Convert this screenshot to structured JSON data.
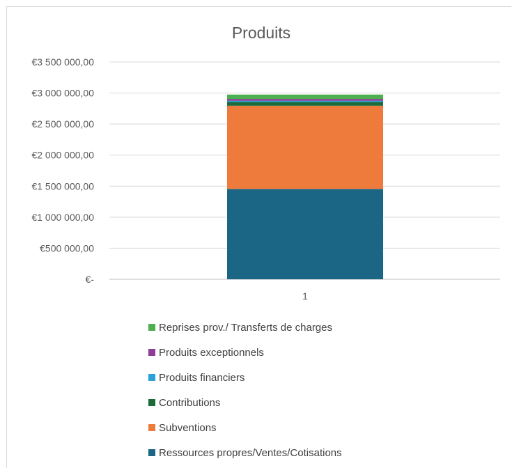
{
  "chart_data": {
    "type": "bar",
    "stacked": true,
    "title": "Produits",
    "xlabel": "",
    "ylabel": "",
    "categories": [
      "1"
    ],
    "ylim": [
      0,
      3500000
    ],
    "y_ticks": [
      0,
      500000,
      1000000,
      1500000,
      2000000,
      2500000,
      3000000,
      3500000
    ],
    "y_tick_labels": [
      "€-",
      "€500 000,00",
      "€1 000 000,00",
      "€1 500 000,00",
      "€2 000 000,00",
      "€2 500 000,00",
      "€3 000 000,00",
      "€3 500 000,00"
    ],
    "grid": true,
    "legend_position": "bottom",
    "series": [
      {
        "name": "Ressources propres/Ventes/Cotisations",
        "values": [
          1455000
        ],
        "color": "#1b6585"
      },
      {
        "name": "Subventions",
        "values": [
          1340000
        ],
        "color": "#ee7a3c"
      },
      {
        "name": "Contributions",
        "values": [
          60000
        ],
        "color": "#1e6b3a"
      },
      {
        "name": "Produits financiers",
        "values": [
          20000
        ],
        "color": "#2aa2d9"
      },
      {
        "name": "Produits exceptionnels",
        "values": [
          30000
        ],
        "color": "#8e3d96"
      },
      {
        "name": "Reprises prov./ Transferts de charges",
        "values": [
          70000
        ],
        "color": "#4caf50"
      }
    ]
  }
}
